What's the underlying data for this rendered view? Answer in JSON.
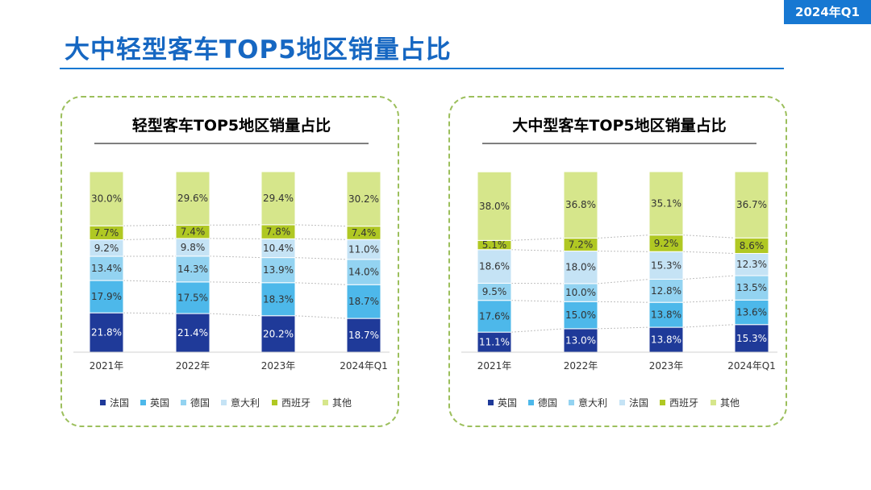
{
  "badge": "2024年Q1",
  "page_title": "大中轻型客车TOP5地区销量占比",
  "colors": {
    "accent": "#1778d2",
    "panel_border": "#9cbf5c",
    "series": [
      "#1f3a99",
      "#4db8ea",
      "#93d3f1",
      "#c5e3f5",
      "#b0c823",
      "#d6e68b"
    ]
  },
  "chart_data": [
    {
      "type": "bar",
      "stacked": true,
      "title": "轻型客车TOP5地区销量占比",
      "categories": [
        "2021年",
        "2022年",
        "2023年",
        "2024年Q1"
      ],
      "series": [
        {
          "name": "法国",
          "values": [
            21.8,
            21.4,
            20.2,
            18.7
          ]
        },
        {
          "name": "英国",
          "values": [
            17.9,
            17.5,
            18.3,
            18.7
          ]
        },
        {
          "name": "德国",
          "values": [
            13.4,
            14.3,
            13.9,
            14.0
          ]
        },
        {
          "name": "意大利",
          "values": [
            9.2,
            9.8,
            10.4,
            11.0
          ]
        },
        {
          "name": "西班牙",
          "values": [
            7.7,
            7.4,
            7.8,
            7.4
          ]
        },
        {
          "name": "其他",
          "values": [
            30.0,
            29.6,
            29.4,
            30.2
          ]
        }
      ],
      "ylim": [
        0,
        100
      ],
      "legend": "bottom"
    },
    {
      "type": "bar",
      "stacked": true,
      "title": "大中型客车TOP5地区销量占比",
      "categories": [
        "2021年",
        "2022年",
        "2023年",
        "2024年Q1"
      ],
      "series": [
        {
          "name": "英国",
          "values": [
            11.1,
            13.0,
            13.8,
            15.3
          ]
        },
        {
          "name": "德国",
          "values": [
            17.6,
            15.0,
            13.8,
            13.6
          ]
        },
        {
          "name": "意大利",
          "values": [
            9.5,
            10.0,
            12.8,
            13.5
          ]
        },
        {
          "name": "法国",
          "values": [
            18.6,
            18.0,
            15.3,
            12.3
          ]
        },
        {
          "name": "西班牙",
          "values": [
            5.1,
            7.2,
            9.2,
            8.6
          ]
        },
        {
          "name": "其他",
          "values": [
            38.0,
            36.8,
            35.1,
            36.7
          ]
        }
      ],
      "ylim": [
        0,
        100
      ],
      "legend": "bottom"
    }
  ]
}
